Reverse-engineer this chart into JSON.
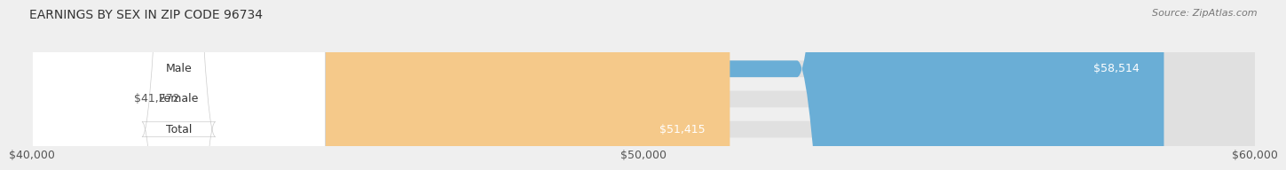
{
  "title": "EARNINGS BY SEX IN ZIP CODE 96734",
  "source": "Source: ZipAtlas.com",
  "categories": [
    "Male",
    "Female",
    "Total"
  ],
  "values": [
    58514,
    41272,
    51415
  ],
  "bar_colors": [
    "#6aaed6",
    "#f9a8c4",
    "#f5c98a"
  ],
  "value_labels": [
    "$58,514",
    "$41,272",
    "$51,415"
  ],
  "xmin": 40000,
  "xmax": 60000,
  "xticks": [
    40000,
    50000,
    60000
  ],
  "xticklabels": [
    "$40,000",
    "$50,000",
    "$60,000"
  ],
  "background_color": "#efefef",
  "bar_bg_color": "#e0e0e0",
  "title_fontsize": 10,
  "tick_fontsize": 9,
  "label_fontsize": 9,
  "value_fontsize": 9
}
